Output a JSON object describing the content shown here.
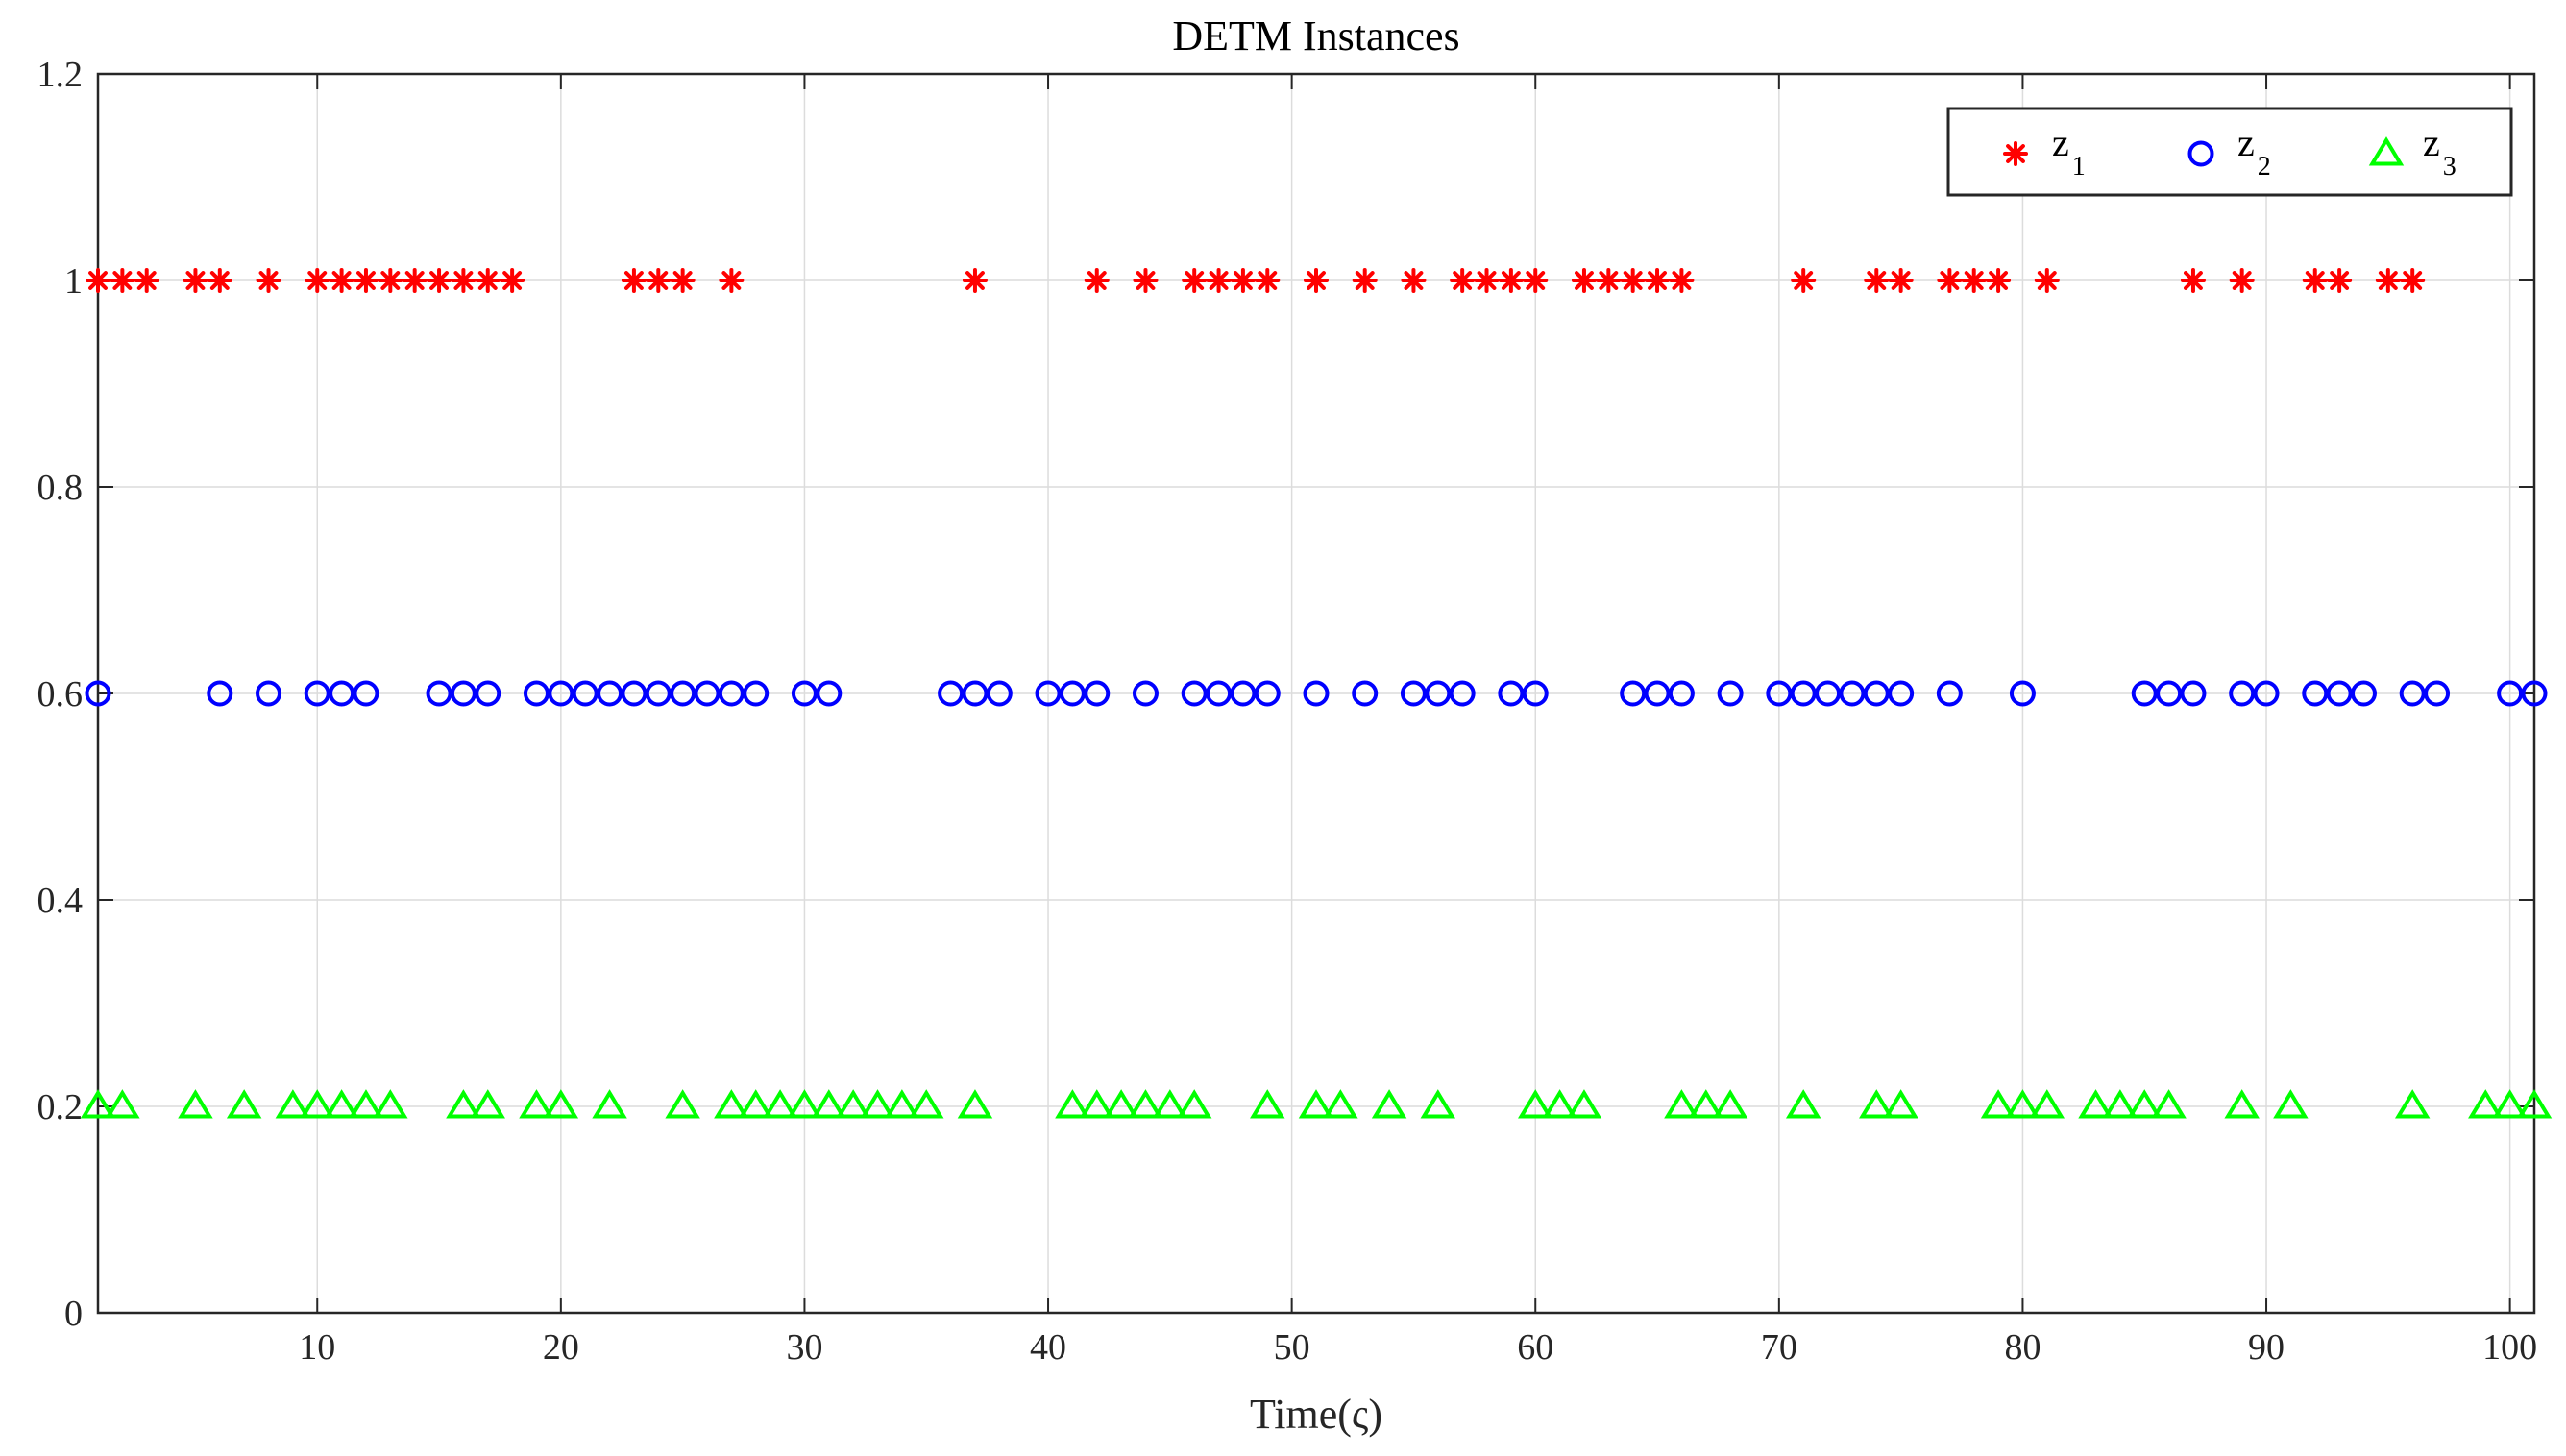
{
  "chart_data": {
    "type": "scatter",
    "title": "DETM Instances",
    "xlabel": "Time(ς)",
    "ylabel": "",
    "xlim": [
      1,
      101
    ],
    "ylim": [
      0,
      1.2
    ],
    "xticks": [
      10,
      20,
      30,
      40,
      50,
      60,
      70,
      80,
      90,
      100
    ],
    "xtick_labels": [
      "10",
      "20",
      "30",
      "40",
      "50",
      "60",
      "70",
      "80",
      "90",
      "100"
    ],
    "yticks": [
      0,
      0.2,
      0.4,
      0.6,
      0.8,
      1,
      1.2
    ],
    "ytick_labels": [
      "0",
      "0.2",
      "0.4",
      "0.6",
      "0.8",
      "1",
      "1.2"
    ],
    "grid": true,
    "legend_position": "top-right",
    "series": [
      {
        "name": "z",
        "subscript": "1",
        "marker": "asterisk",
        "color": "#ff0000",
        "y": 1,
        "x": [
          1,
          2,
          3,
          5,
          6,
          8,
          10,
          11,
          12,
          13,
          14,
          15,
          16,
          17,
          18,
          23,
          24,
          25,
          27,
          37,
          42,
          44,
          46,
          47,
          48,
          49,
          51,
          53,
          55,
          57,
          58,
          59,
          60,
          62,
          63,
          64,
          65,
          66,
          71,
          74,
          75,
          77,
          78,
          79,
          81,
          87,
          89,
          92,
          93,
          95,
          96
        ]
      },
      {
        "name": "z",
        "subscript": "2",
        "marker": "circle",
        "color": "#0000ff",
        "y": 0.6,
        "x": [
          1,
          6,
          8,
          10,
          11,
          12,
          15,
          16,
          17,
          19,
          20,
          21,
          22,
          23,
          24,
          25,
          26,
          27,
          28,
          30,
          31,
          36,
          37,
          38,
          40,
          41,
          42,
          44,
          46,
          47,
          48,
          49,
          51,
          53,
          55,
          56,
          57,
          59,
          60,
          64,
          65,
          66,
          68,
          70,
          71,
          72,
          73,
          74,
          75,
          77,
          80,
          85,
          86,
          87,
          89,
          90,
          92,
          93,
          94,
          96,
          97,
          100,
          101
        ]
      },
      {
        "name": "z",
        "subscript": "3",
        "marker": "triangle",
        "color": "#00ff00",
        "y": 0.2,
        "x": [
          1,
          2,
          5,
          7,
          9,
          10,
          11,
          12,
          13,
          16,
          17,
          19,
          20,
          22,
          25,
          27,
          28,
          29,
          30,
          31,
          32,
          33,
          34,
          35,
          37,
          41,
          42,
          43,
          44,
          45,
          46,
          49,
          51,
          52,
          54,
          56,
          60,
          61,
          62,
          66,
          67,
          68,
          71,
          74,
          75,
          79,
          80,
          81,
          83,
          84,
          85,
          86,
          89,
          91,
          96,
          99,
          100,
          101
        ]
      }
    ]
  }
}
